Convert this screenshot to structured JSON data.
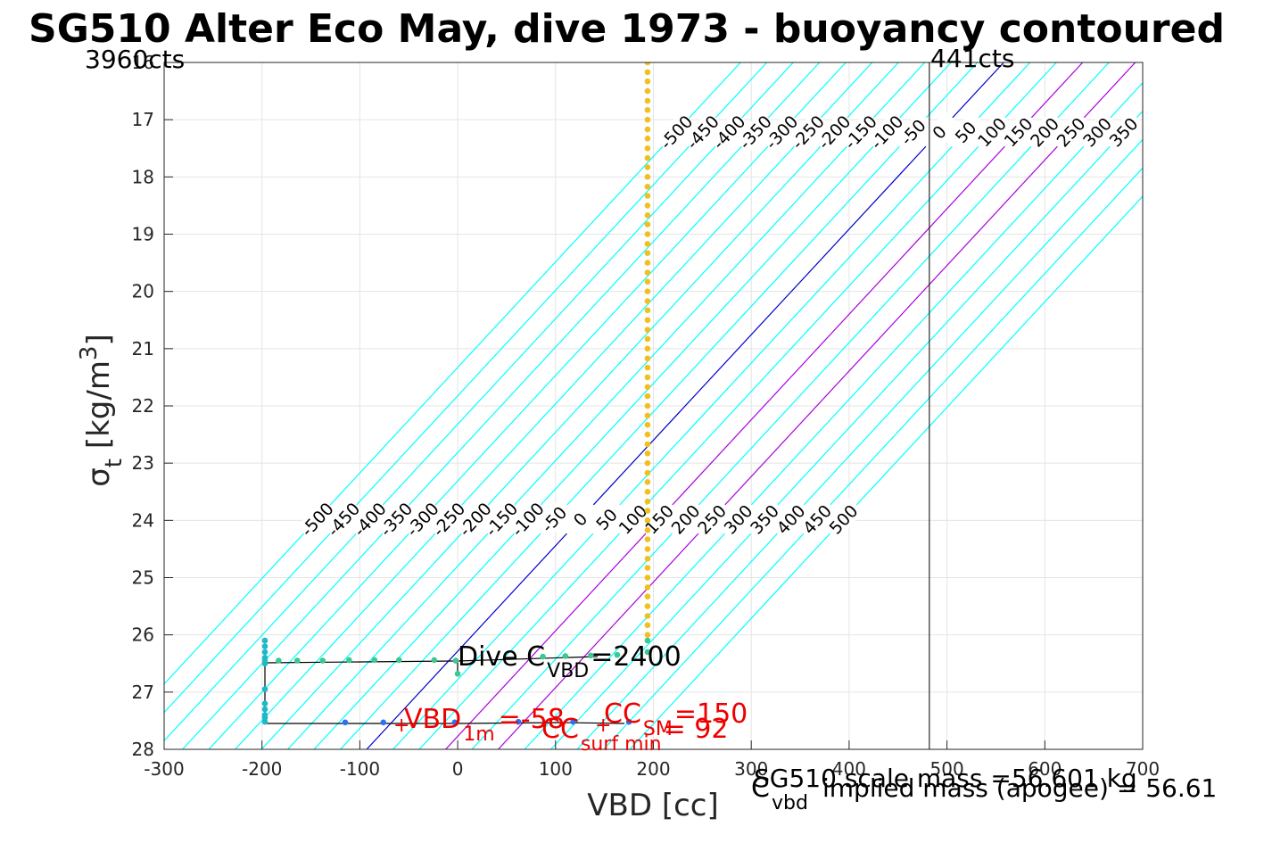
{
  "chart_data": {
    "type": "scatter",
    "title": "SG510 Alter Eco May, dive 1973 - buoyancy contoured",
    "xlabel": "VBD [cc]",
    "ylabel": "σ t [kg/m 3]",
    "ylabel_parts": {
      "base": "σ",
      "sub": "t",
      "unit_open": " [kg/m",
      "sup": "3",
      "unit_close": "]"
    },
    "xlim": [
      -300,
      700
    ],
    "ylim": [
      16,
      28
    ],
    "y_reversed": true,
    "grid": true,
    "x_ticks": [
      "-300",
      "-200",
      "-100",
      "0",
      "100",
      "200",
      "300",
      "400",
      "500",
      "600",
      "700"
    ],
    "y_ticks": [
      "16",
      "17",
      "18",
      "19",
      "20",
      "21",
      "22",
      "23",
      "24",
      "25",
      "26",
      "27",
      "28"
    ],
    "top_left_label": "3960cts",
    "top_right_label": "441cts",
    "max_vbd_line_x": 482,
    "neutral_line": {
      "x_at_top": 558,
      "x_at_bottom": -93,
      "color": "#0000cc"
    },
    "contour_levels": [
      "-500",
      "-450",
      "-400",
      "-350",
      "-300",
      "-250",
      "-200",
      "-150",
      "-100",
      "-50",
      "0",
      "50",
      "100",
      "150",
      "200",
      "250",
      "300",
      "350",
      "400",
      "450",
      "500"
    ],
    "contour_colors": {
      "default": "#00ffff",
      "zero": "#0000cc",
      "highlight": "#aa00dd"
    },
    "highlight_levels": [
      150,
      250
    ],
    "series": [
      {
        "color": "#f0c020",
        "points_x": [
          194,
          194,
          194,
          194,
          194,
          194,
          194,
          194,
          194,
          194,
          194,
          194,
          194,
          194,
          194,
          194,
          194,
          194,
          194,
          194,
          194,
          194,
          194,
          194,
          194,
          194,
          194,
          194,
          194,
          194,
          194,
          194,
          194,
          194,
          194,
          194,
          194,
          194,
          194,
          194,
          194,
          194,
          194,
          194,
          194,
          194,
          194,
          194,
          194,
          194,
          194,
          194,
          194,
          194,
          194,
          194,
          194,
          194,
          194,
          194,
          194
        ],
        "points_y": [
          16.0,
          16.17,
          16.33,
          16.5,
          16.67,
          16.83,
          17.0,
          17.17,
          17.33,
          17.5,
          17.67,
          17.83,
          18.0,
          18.17,
          18.33,
          18.5,
          18.67,
          18.83,
          19.0,
          19.17,
          19.33,
          19.5,
          19.67,
          19.83,
          20.0,
          20.17,
          20.33,
          20.5,
          20.67,
          20.83,
          21.0,
          21.17,
          21.33,
          21.5,
          21.67,
          21.83,
          22.0,
          22.17,
          22.33,
          22.5,
          22.67,
          22.83,
          23.0,
          23.17,
          23.33,
          23.5,
          23.67,
          23.83,
          24.0,
          24.17,
          24.33,
          24.5,
          24.67,
          24.83,
          25.0,
          25.17,
          25.33,
          25.5,
          25.67,
          25.83,
          26.0
        ]
      },
      {
        "color": "#3cc890",
        "points_x": [
          194,
          194,
          163,
          136,
          110,
          87,
          -24,
          -60,
          -85,
          -111,
          -138,
          -164,
          -183,
          -197,
          0,
          -2
        ],
        "points_y": [
          26.1,
          26.3,
          26.35,
          26.36,
          26.37,
          26.38,
          26.44,
          26.44,
          26.44,
          26.44,
          26.45,
          26.45,
          26.45,
          26.45,
          26.68,
          26.45
        ]
      },
      {
        "color": "#20b8c8",
        "points_x": [
          -197,
          -197,
          -197,
          -197,
          -197,
          -197,
          -197,
          -197,
          -197,
          -197,
          -197
        ],
        "points_y": [
          26.1,
          26.2,
          26.3,
          26.4,
          26.5,
          26.95,
          27.2,
          27.3,
          27.4,
          27.45,
          27.52
        ]
      },
      {
        "color": "#3070f0",
        "points_x": [
          -115,
          -76,
          -3,
          62,
          118,
          175
        ],
        "points_y": [
          27.53,
          27.53,
          27.53,
          27.52,
          27.52,
          27.52
        ]
      }
    ],
    "annotations": {
      "dive_c": {
        "text": "Dive C",
        "sub": "VBD",
        "value": "=2400"
      },
      "vbd_1m": {
        "marker": "+",
        "text": "VBD",
        "sub": "1m",
        "value": "=-58"
      },
      "cc_sm": {
        "marker": "+",
        "text": "CC",
        "sub": "SM",
        "value": "=150"
      },
      "cc_surf": {
        "text": "CC",
        "sub": "surf min",
        "value": "= 92"
      },
      "c_vbd": {
        "text": "C",
        "sub": "vbd"
      },
      "scale_mass": "SG510 scale mass =56.601 kg",
      "implied_mass": "implied mass (apogee) = 56.61"
    }
  }
}
